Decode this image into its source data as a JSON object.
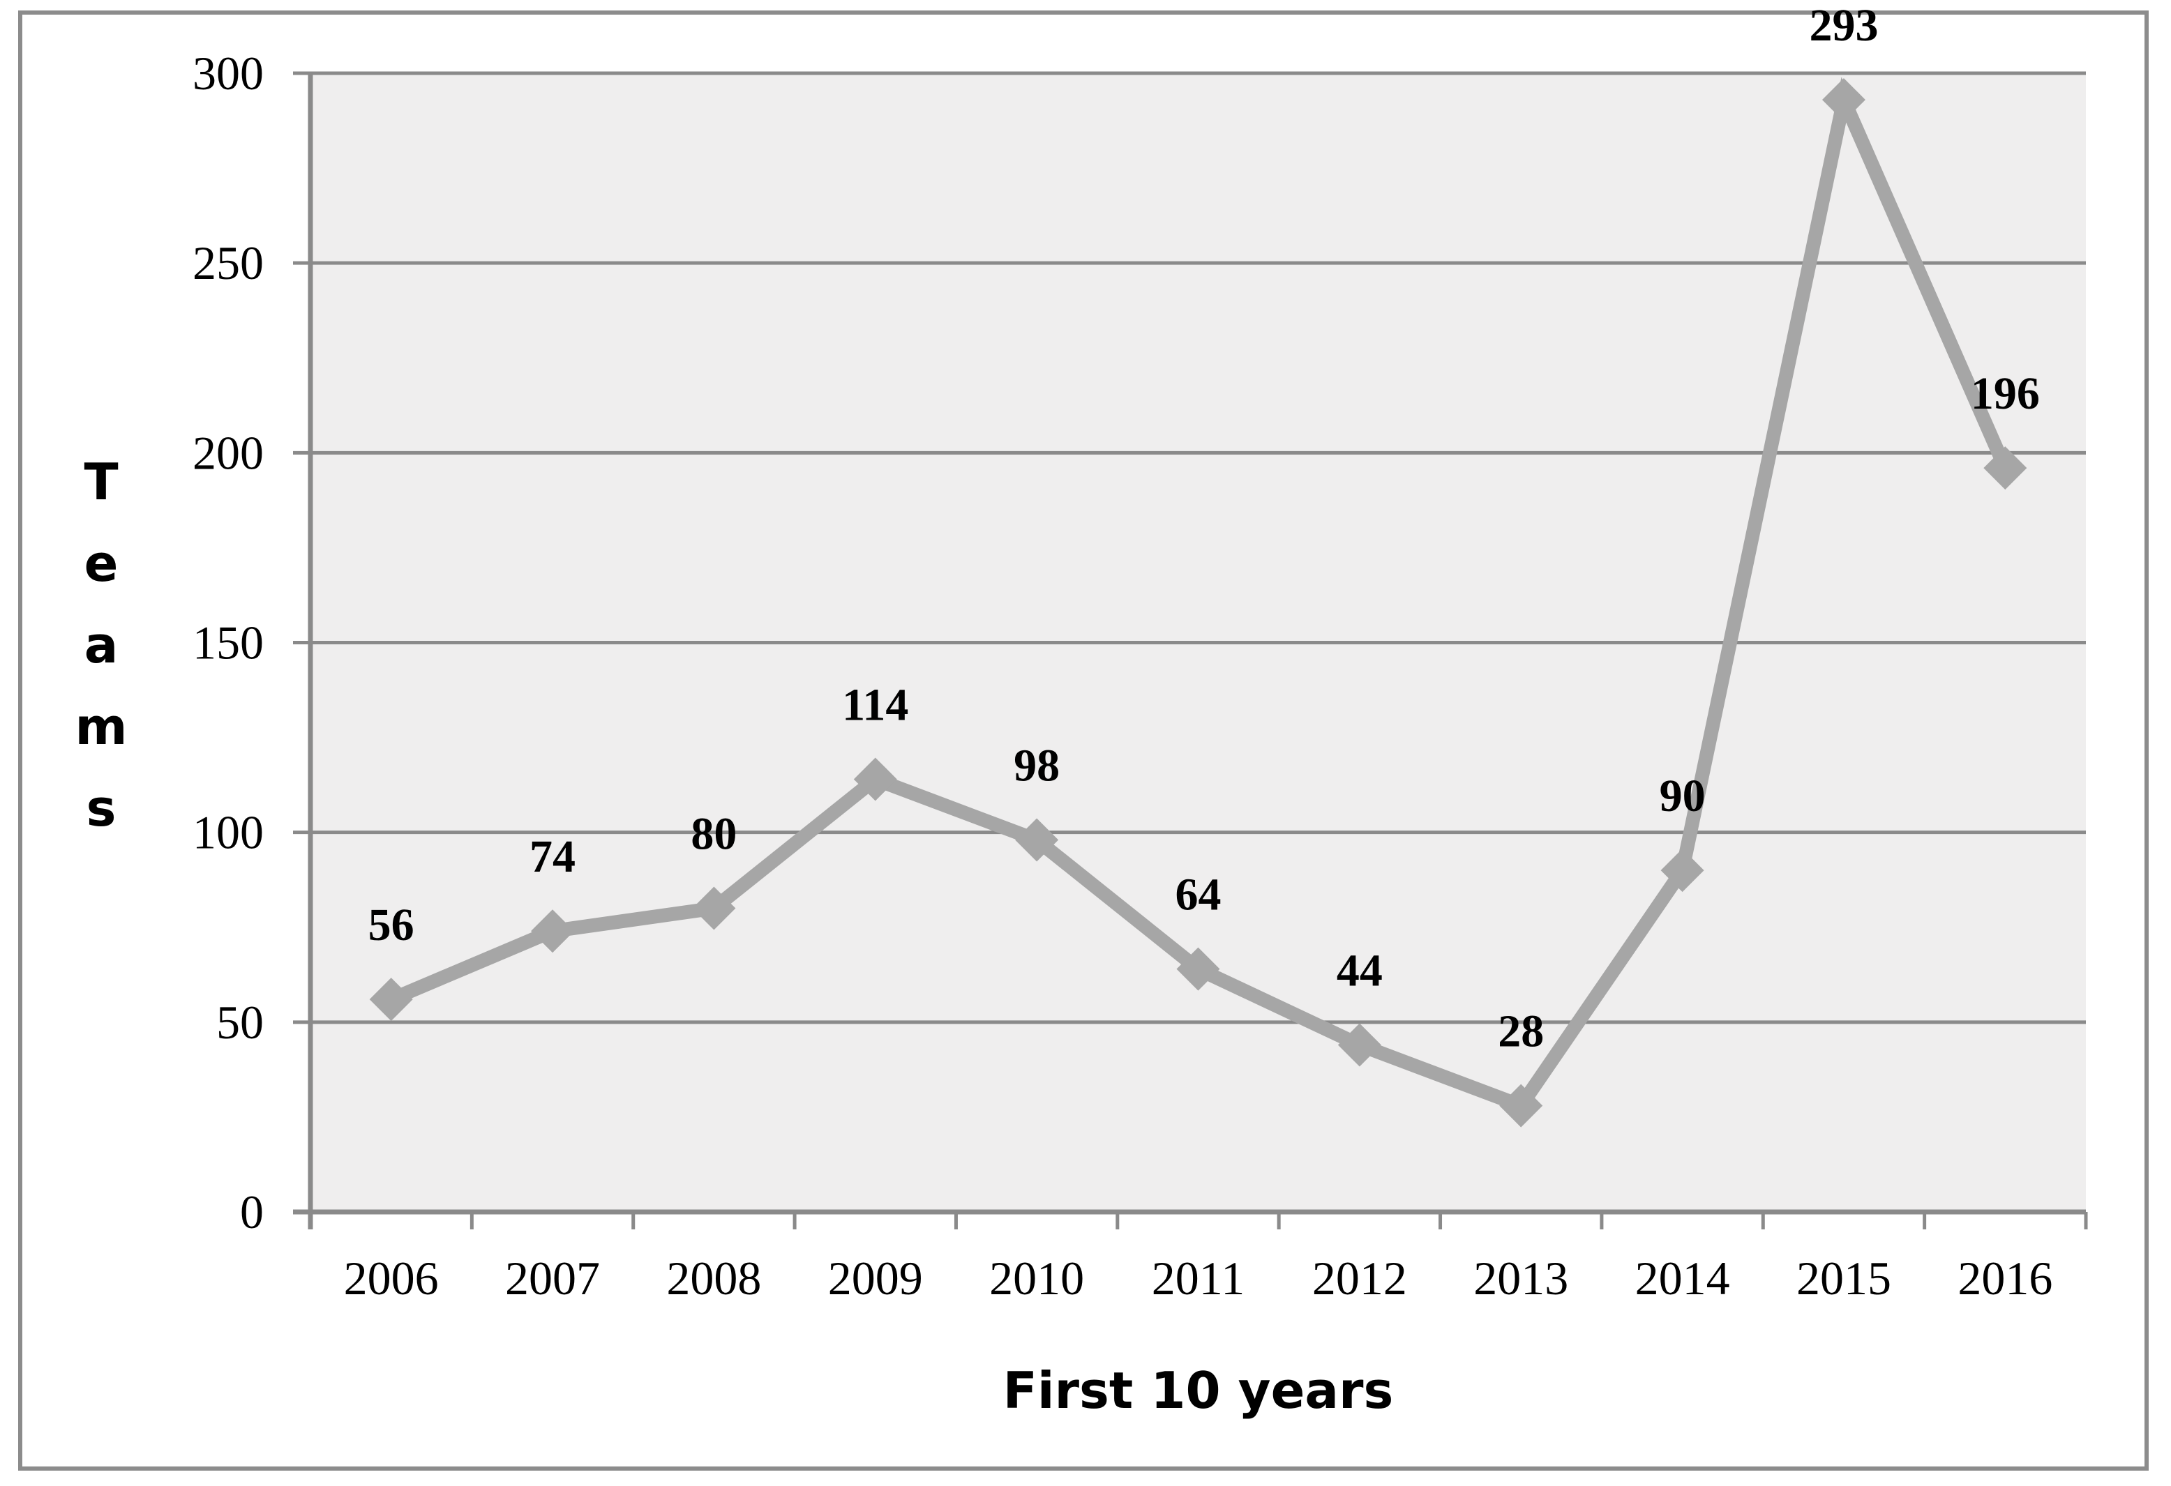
{
  "frame": {
    "border_color": "#8c8c8c"
  },
  "chart_data": {
    "type": "line",
    "categories": [
      "2006",
      "2007",
      "2008",
      "2009",
      "2010",
      "2011",
      "2012",
      "2013",
      "2014",
      "2015",
      "2016"
    ],
    "series": [
      {
        "name": "Teams",
        "values": [
          56,
          74,
          80,
          114,
          98,
          64,
          44,
          28,
          90,
          293,
          196
        ],
        "color": "#a6a6a6"
      }
    ],
    "data_labels": [
      "56",
      "74",
      "80",
      "114",
      "98",
      "64",
      "44",
      "28",
      "90",
      "293",
      "196"
    ],
    "title": "",
    "xlabel": "First 10 years",
    "ylabel": "Teams",
    "ylim": [
      0,
      300
    ],
    "yticks": [
      0,
      50,
      100,
      150,
      200,
      250,
      300
    ],
    "ytick_labels": [
      "0",
      "50",
      "100",
      "150",
      "200",
      "250",
      "300"
    ],
    "grid": true,
    "legend": "none",
    "marker": "diamond",
    "colors": {
      "plot_background": "#efeeee",
      "gridline": "#8a8a8a",
      "axis": "#8a8a8a",
      "text": "#000000"
    }
  }
}
